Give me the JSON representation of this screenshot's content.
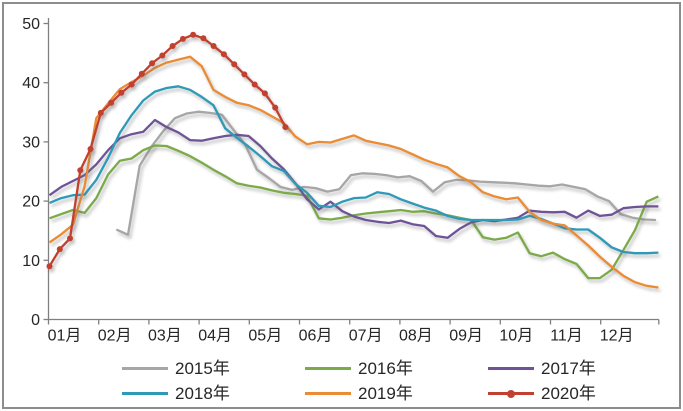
{
  "chart_data": {
    "type": "line",
    "title": "",
    "grid": false,
    "legend_position": "bottom",
    "x_axis": {
      "labels": [
        "01月",
        "02月",
        "03月",
        "04月",
        "05月",
        "06月",
        "07月",
        "08月",
        "09月",
        "10月",
        "11月",
        "12月"
      ]
    },
    "y_axis": {
      "min": 0,
      "max": 50,
      "ticks": [
        0,
        10,
        20,
        30,
        40,
        50
      ]
    },
    "axis_color": "#808080",
    "label_color": "#262626",
    "series": [
      {
        "name": "2015年",
        "color": "#A6A6A6",
        "marker": false,
        "start_month": 1.35,
        "end_month": 12.1,
        "values": [
          15.2,
          14.3,
          26.0,
          29.2,
          31.8,
          34.0,
          34.8,
          35.1,
          34.9,
          34.6,
          32.0,
          29.5,
          25.3,
          23.9,
          22.4,
          21.9,
          22.4,
          22.2,
          21.6,
          22.0,
          24.4,
          24.7,
          24.6,
          24.4,
          24.0,
          24.2,
          23.4,
          21.6,
          23.2,
          23.6,
          23.5,
          23.3,
          23.2,
          23.1,
          23.0,
          22.8,
          22.6,
          22.5,
          22.8,
          22.4,
          22.0,
          20.8,
          20.0,
          17.8,
          17.2,
          16.9,
          16.8
        ]
      },
      {
        "name": "2016年",
        "color": "#7BAB48",
        "marker": false,
        "start_month": 0.02,
        "end_month": 12.15,
        "values": [
          17.1,
          17.8,
          18.5,
          18.0,
          20.5,
          24.5,
          26.8,
          27.2,
          28.6,
          29.4,
          29.3,
          28.5,
          27.6,
          26.5,
          25.3,
          24.2,
          23.0,
          22.6,
          22.3,
          21.8,
          21.4,
          21.2,
          20.9,
          17.1,
          16.9,
          17.2,
          17.6,
          17.9,
          18.1,
          18.3,
          18.5,
          18.2,
          18.3,
          17.9,
          17.6,
          17.2,
          16.8,
          13.9,
          13.5,
          13.8,
          14.7,
          11.2,
          10.7,
          11.3,
          10.2,
          9.4,
          7.0,
          7.0,
          8.4,
          11.7,
          15.1,
          19.9,
          20.8
        ]
      },
      {
        "name": "2017年",
        "color": "#6E5397",
        "marker": false,
        "start_month": 0.02,
        "end_month": 12.15,
        "values": [
          21.0,
          22.4,
          23.4,
          24.4,
          26.2,
          28.6,
          30.6,
          31.3,
          31.7,
          33.7,
          32.5,
          31.6,
          30.3,
          30.2,
          30.6,
          31.0,
          31.2,
          31.0,
          29.3,
          27.2,
          25.4,
          23.0,
          20.3,
          18.6,
          19.9,
          18.3,
          17.4,
          16.8,
          16.5,
          16.3,
          16.7,
          16.1,
          15.8,
          14.1,
          13.8,
          15.3,
          16.4,
          16.8,
          16.6,
          16.9,
          17.2,
          18.4,
          18.2,
          18.1,
          18.2,
          17.2,
          18.4,
          17.5,
          17.7,
          18.8,
          19.0,
          19.1,
          19.1
        ]
      },
      {
        "name": "2018年",
        "color": "#2E9AB8",
        "marker": false,
        "start_month": 0.02,
        "end_month": 12.15,
        "values": [
          19.7,
          20.5,
          21.0,
          21.1,
          23.6,
          27.3,
          31.5,
          34.5,
          37.0,
          38.5,
          39.1,
          39.4,
          38.8,
          37.6,
          36.2,
          32.3,
          30.7,
          29.2,
          27.6,
          25.9,
          25.1,
          22.9,
          21.4,
          19.2,
          19.0,
          19.9,
          20.5,
          20.6,
          21.5,
          21.2,
          20.3,
          19.6,
          18.9,
          18.4,
          17.5,
          17.0,
          16.8,
          16.8,
          16.8,
          16.8,
          16.9,
          17.5,
          17.0,
          16.2,
          15.4,
          15.2,
          15.2,
          13.8,
          12.2,
          11.4,
          11.2,
          11.2,
          11.3
        ]
      },
      {
        "name": "2019年",
        "color": "#EB8B33",
        "marker": false,
        "start_month": 0.02,
        "end_month": 12.15,
        "values": [
          13.0,
          14.4,
          16.0,
          22.5,
          34.0,
          36.5,
          38.9,
          40.1,
          41.2,
          42.5,
          43.4,
          43.9,
          44.4,
          42.8,
          38.8,
          37.6,
          36.6,
          36.2,
          35.4,
          34.3,
          33.2,
          30.9,
          29.6,
          30.0,
          29.9,
          30.5,
          31.1,
          30.2,
          29.8,
          29.4,
          28.8,
          27.9,
          27.0,
          26.3,
          25.7,
          24.2,
          23.2,
          21.5,
          20.8,
          20.3,
          20.6,
          18.2,
          16.8,
          16.2,
          15.9,
          14.2,
          12.5,
          10.6,
          8.9,
          7.4,
          6.3,
          5.7,
          5.4
        ]
      },
      {
        "name": "2020年",
        "color": "#C2402F",
        "marker": true,
        "start_month": 0.02,
        "end_month": 4.72,
        "values": [
          9.0,
          11.9,
          13.7,
          25.2,
          28.8,
          34.9,
          36.6,
          38.3,
          39.7,
          41.5,
          43.3,
          44.6,
          46.2,
          47.4,
          48.1,
          47.5,
          46.2,
          44.8,
          43.1,
          41.4,
          39.7,
          38.2,
          35.8,
          32.5
        ]
      }
    ]
  }
}
